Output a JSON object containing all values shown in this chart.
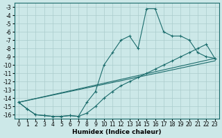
{
  "xlabel": "Humidex (Indice chaleur)",
  "background_color": "#cce8e8",
  "grid_color": "#aacccc",
  "line_color": "#1a6b6b",
  "xlim": [
    -0.5,
    23.5
  ],
  "ylim": [
    -16.5,
    -2.5
  ],
  "yticks": [
    -3,
    -4,
    -5,
    -6,
    -7,
    -8,
    -9,
    -10,
    -11,
    -12,
    -13,
    -14,
    -15,
    -16
  ],
  "xticks": [
    0,
    1,
    2,
    3,
    4,
    5,
    6,
    7,
    8,
    9,
    10,
    11,
    12,
    13,
    14,
    15,
    16,
    17,
    18,
    19,
    20,
    21,
    22,
    23
  ],
  "curve_x": [
    0,
    1,
    2,
    3,
    4,
    5,
    6,
    7,
    8,
    9,
    10,
    11,
    12,
    13,
    14,
    15,
    16,
    17,
    18,
    19,
    20,
    21,
    22,
    23
  ],
  "curve_y": [
    -14.5,
    -15.3,
    -16.0,
    -16.1,
    -16.2,
    -16.2,
    -16.1,
    -16.2,
    -14.5,
    -13.2,
    -10.0,
    -8.5,
    -7.0,
    -6.5,
    -8.0,
    -3.2,
    -3.2,
    -6.0,
    -6.5,
    -6.5,
    -7.0,
    -8.5,
    -9.0,
    -9.2
  ],
  "line1_x": [
    0,
    23
  ],
  "line1_y": [
    -14.5,
    -9.2
  ],
  "line2_x": [
    0,
    1,
    2,
    3,
    4,
    5,
    6,
    7,
    8,
    9,
    10,
    11,
    12,
    13,
    14,
    15,
    16,
    17,
    18,
    19,
    20,
    21,
    22,
    23
  ],
  "line2_y": [
    -14.5,
    -15.3,
    -16.0,
    -16.1,
    -16.2,
    -16.2,
    -16.1,
    -16.2,
    -15.8,
    -15.0,
    -14.0,
    -13.2,
    -12.5,
    -12.0,
    -11.5,
    -11.0,
    -10.5,
    -10.0,
    -9.5,
    -9.0,
    -8.5,
    -8.0,
    -7.5,
    -9.2
  ]
}
